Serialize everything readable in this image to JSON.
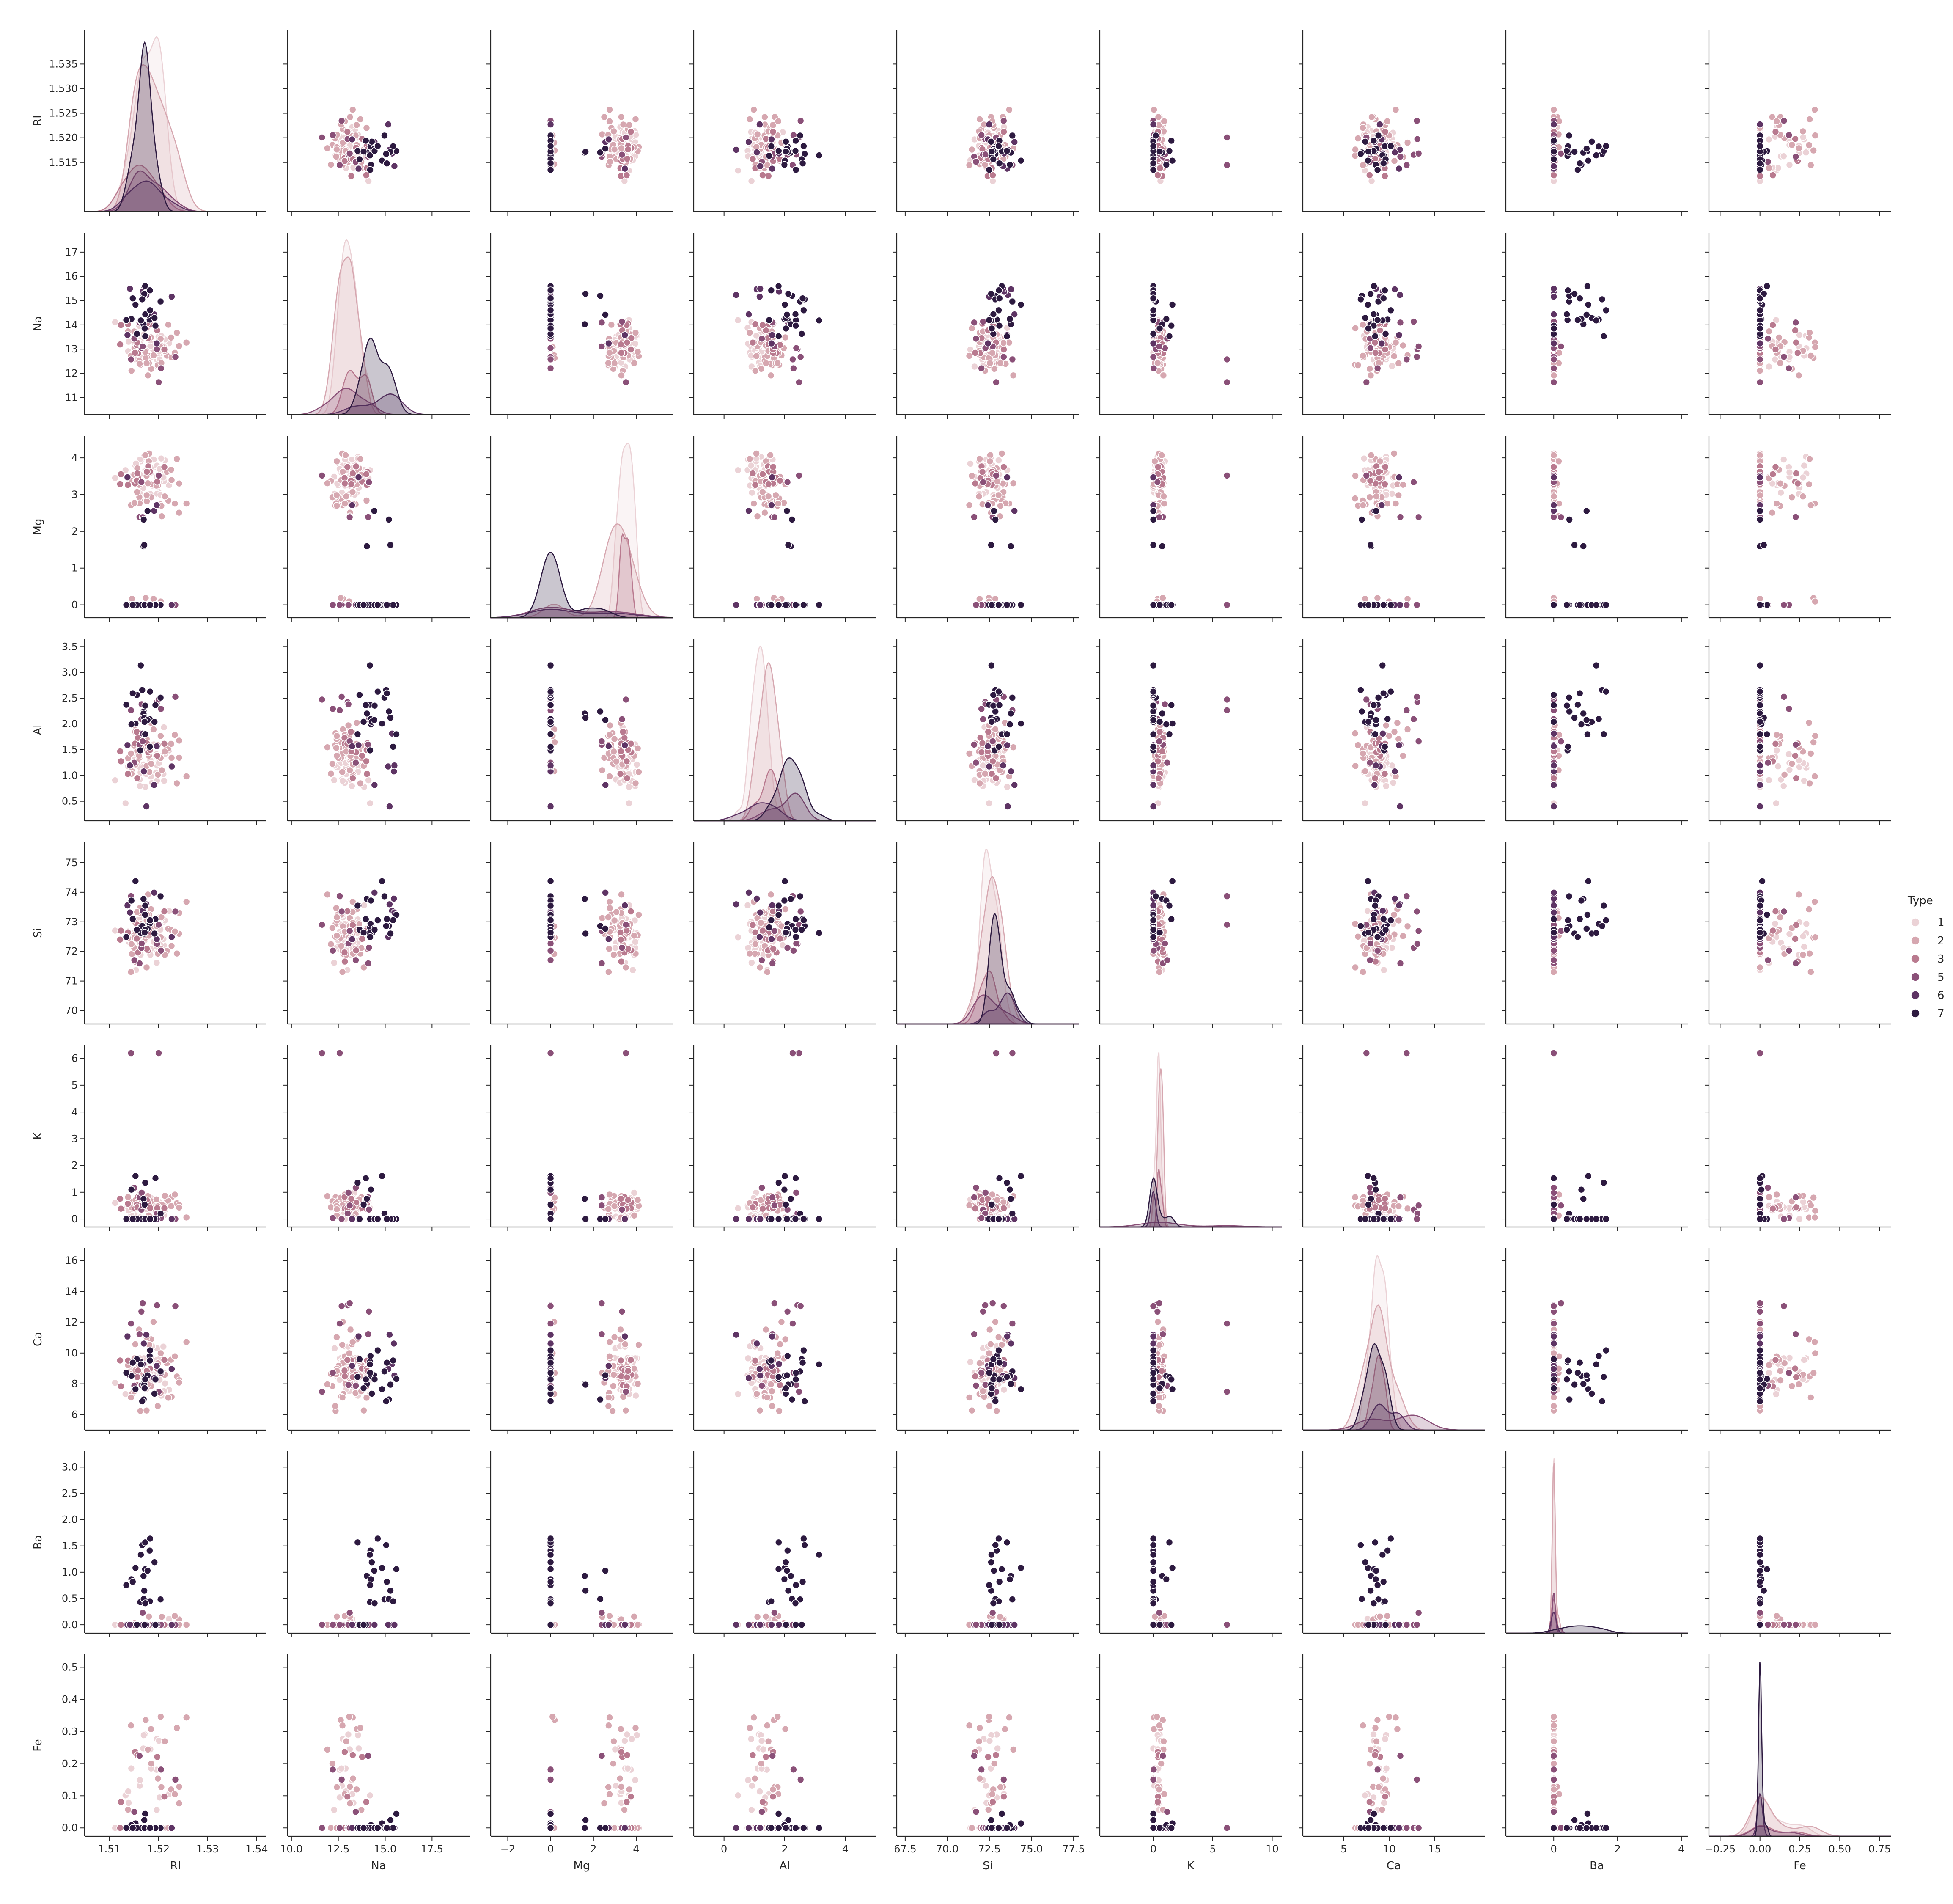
{
  "chart_data": {
    "type": "scatter",
    "variables": [
      "RI",
      "Na",
      "Mg",
      "Al",
      "Si",
      "K",
      "Ca",
      "Ba",
      "Fe"
    ],
    "hue": {
      "title": "Type",
      "levels": [
        "1",
        "2",
        "3",
        "5",
        "6",
        "7"
      ],
      "colors": [
        "#ebd2d6",
        "#d6a7b0",
        "#b97a8f",
        "#8a5078",
        "#5e3464",
        "#2d1a40"
      ]
    },
    "axes": {
      "RI": {
        "lim": [
          1.505,
          1.542
        ],
        "ticks": [
          1.51,
          1.52,
          1.53,
          1.54
        ],
        "tick_labels": [
          "1.51",
          "1.52",
          "1.53",
          "1.54"
        ],
        "row_ticks": [
          1.515,
          1.52,
          1.525,
          1.53,
          1.535
        ],
        "row_tick_labels": [
          "1.515",
          "1.520",
          "1.525",
          "1.530",
          "1.535"
        ]
      },
      "Na": {
        "lim": [
          9.8,
          19.5
        ],
        "ticks": [
          10.0,
          12.5,
          15.0,
          17.5
        ],
        "tick_labels": [
          "10.0",
          "12.5",
          "15.0",
          "17.5"
        ],
        "row_lim": [
          10.3,
          17.8
        ],
        "row_ticks": [
          11,
          12,
          13,
          14,
          15,
          16,
          17
        ],
        "row_tick_labels": [
          "11",
          "12",
          "13",
          "14",
          "15",
          "16",
          "17"
        ]
      },
      "Mg": {
        "lim": [
          -2.8,
          5.7
        ],
        "ticks": [
          -2,
          0,
          2,
          4
        ],
        "tick_labels": [
          "−2",
          "0",
          "2",
          "4"
        ],
        "row_lim": [
          -0.35,
          4.6
        ],
        "row_ticks": [
          0,
          1,
          2,
          3,
          4
        ],
        "row_tick_labels": [
          "0",
          "1",
          "2",
          "3",
          "4"
        ]
      },
      "Al": {
        "lim": [
          -1.0,
          5.0
        ],
        "ticks": [
          0,
          2,
          4
        ],
        "tick_labels": [
          "0",
          "2",
          "4"
        ],
        "row_lim": [
          0.12,
          3.65
        ],
        "row_ticks": [
          0.5,
          1.0,
          1.5,
          2.0,
          2.5,
          3.0,
          3.5
        ],
        "row_tick_labels": [
          "0.5",
          "1.0",
          "1.5",
          "2.0",
          "2.5",
          "3.0",
          "3.5"
        ]
      },
      "Si": {
        "lim": [
          67.0,
          77.8
        ],
        "ticks": [
          67.5,
          70.0,
          72.5,
          75.0,
          77.5
        ],
        "tick_labels": [
          "67.5",
          "70.0",
          "72.5",
          "75.0",
          "77.5"
        ],
        "row_lim": [
          69.55,
          75.7
        ],
        "row_ticks": [
          70,
          71,
          72,
          73,
          74,
          75
        ],
        "row_tick_labels": [
          "70",
          "71",
          "72",
          "73",
          "74",
          "75"
        ]
      },
      "K": {
        "lim": [
          -4.5,
          10.8
        ],
        "ticks": [
          0,
          5,
          10
        ],
        "tick_labels": [
          "0",
          "5",
          "10"
        ],
        "row_lim": [
          -0.3,
          6.5
        ],
        "row_ticks": [
          0,
          1,
          2,
          3,
          4,
          5,
          6
        ],
        "row_tick_labels": [
          "0",
          "1",
          "2",
          "3",
          "4",
          "5",
          "6"
        ]
      },
      "Ca": {
        "lim": [
          0.5,
          20.5
        ],
        "ticks": [
          5,
          10,
          15
        ],
        "tick_labels": [
          "5",
          "10",
          "15"
        ],
        "row_lim": [
          5.0,
          16.8
        ],
        "row_ticks": [
          6,
          8,
          10,
          12,
          14,
          16
        ],
        "row_tick_labels": [
          "6",
          "8",
          "10",
          "12",
          "14",
          "16"
        ]
      },
      "Ba": {
        "lim": [
          -1.5,
          4.2
        ],
        "ticks": [
          0,
          2,
          4
        ],
        "tick_labels": [
          "0",
          "2",
          "4"
        ],
        "row_lim": [
          -0.16,
          3.3
        ],
        "row_ticks": [
          0.0,
          0.5,
          1.0,
          1.5,
          2.0,
          2.5,
          3.0
        ],
        "row_tick_labels": [
          "0.0",
          "0.5",
          "1.0",
          "1.5",
          "2.0",
          "2.5",
          "3.0"
        ]
      },
      "Fe": {
        "lim": [
          -0.32,
          0.82
        ],
        "ticks": [
          -0.25,
          0.0,
          0.25,
          0.5,
          0.75
        ],
        "tick_labels": [
          "−0.25",
          "0.00",
          "0.25",
          "0.50",
          "0.75"
        ],
        "row_lim": [
          -0.026,
          0.54
        ],
        "row_ticks": [
          0.0,
          0.1,
          0.2,
          0.3,
          0.4,
          0.5
        ],
        "row_tick_labels": [
          "0.0",
          "0.1",
          "0.2",
          "0.3",
          "0.4",
          "0.5"
        ]
      }
    },
    "seed": 7
  }
}
